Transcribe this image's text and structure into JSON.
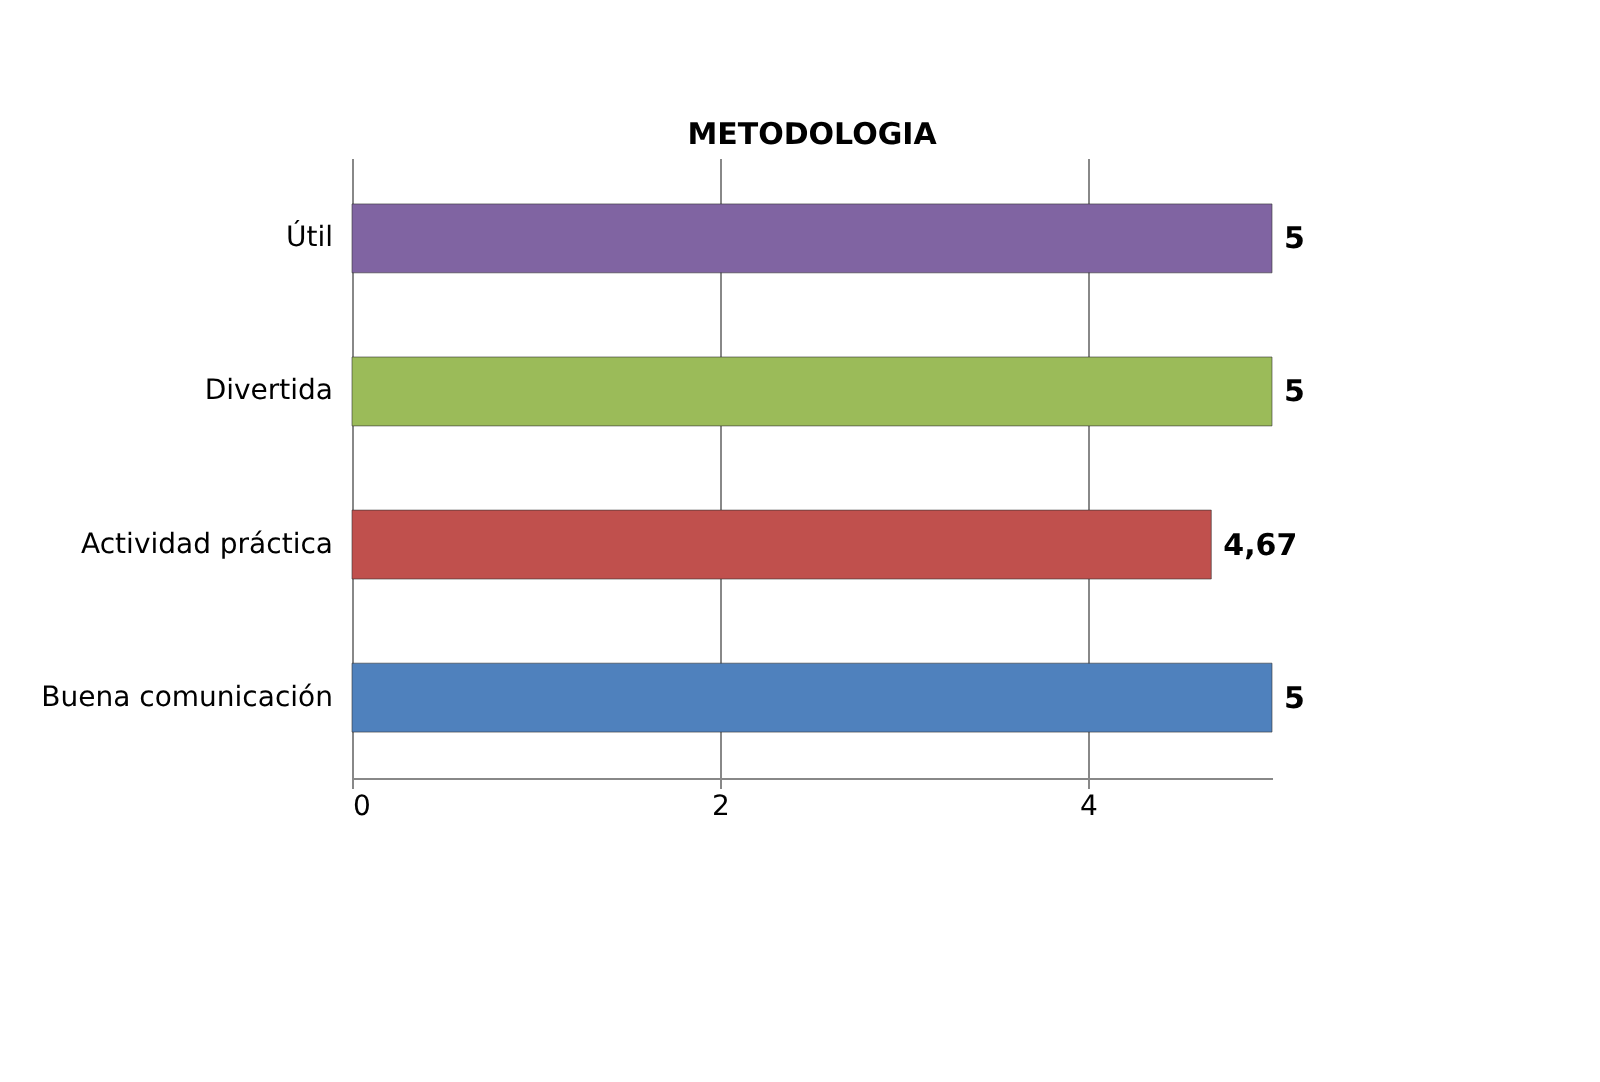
{
  "chart_data": {
    "type": "bar",
    "orientation": "horizontal",
    "title": "METODOLOGIA",
    "categories": [
      "Útil",
      "Divertida",
      "Actividad práctica",
      "Buena comunicación"
    ],
    "values": [
      5,
      5,
      4.67,
      5
    ],
    "colors": [
      "#8064a2",
      "#9bbb59",
      "#c0504d",
      "#4f81bd"
    ],
    "value_labels": [
      "5",
      "5",
      "4,67",
      "5"
    ],
    "xlim": [
      0,
      5
    ],
    "xticks": [
      0,
      2,
      4
    ],
    "grid": "x"
  }
}
